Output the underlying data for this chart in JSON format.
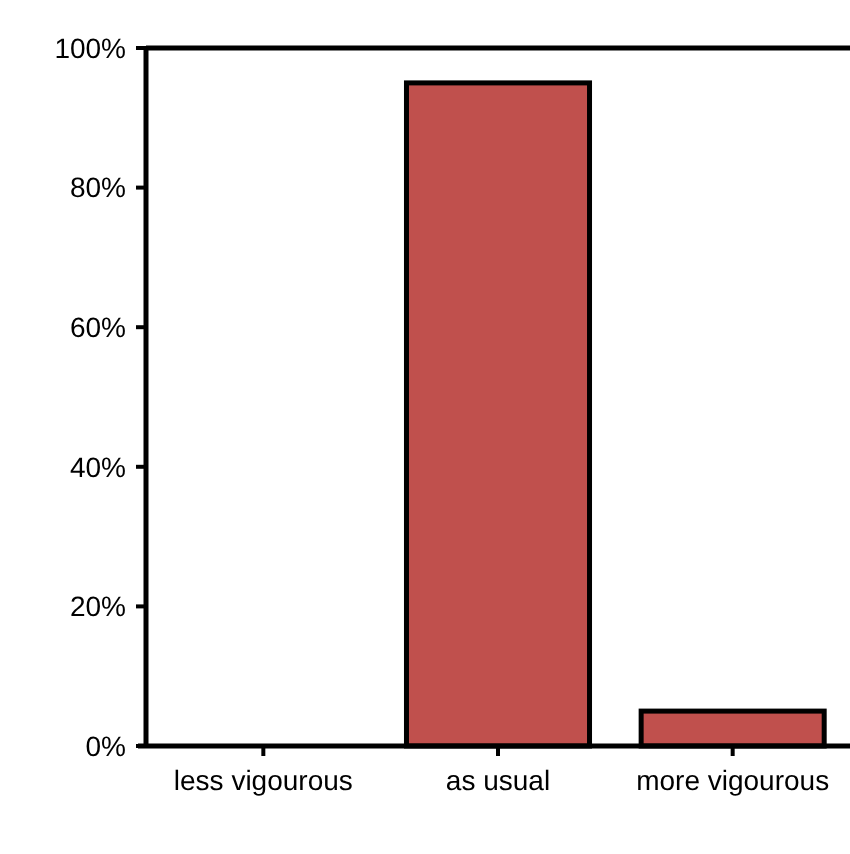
{
  "chart_data": {
    "type": "bar",
    "categories": [
      "less vigourous",
      "as usual",
      "more vigourous"
    ],
    "values": [
      0,
      95,
      5
    ],
    "color": "#c0504d",
    "ylim": [
      0,
      100
    ],
    "yticks": [
      {
        "value": 0,
        "label": "0%"
      },
      {
        "value": 20,
        "label": "20%"
      },
      {
        "value": 40,
        "label": "40%"
      },
      {
        "value": 60,
        "label": "60%"
      },
      {
        "value": 80,
        "label": "80%"
      },
      {
        "value": 100,
        "label": "100%"
      }
    ],
    "grid": false
  }
}
